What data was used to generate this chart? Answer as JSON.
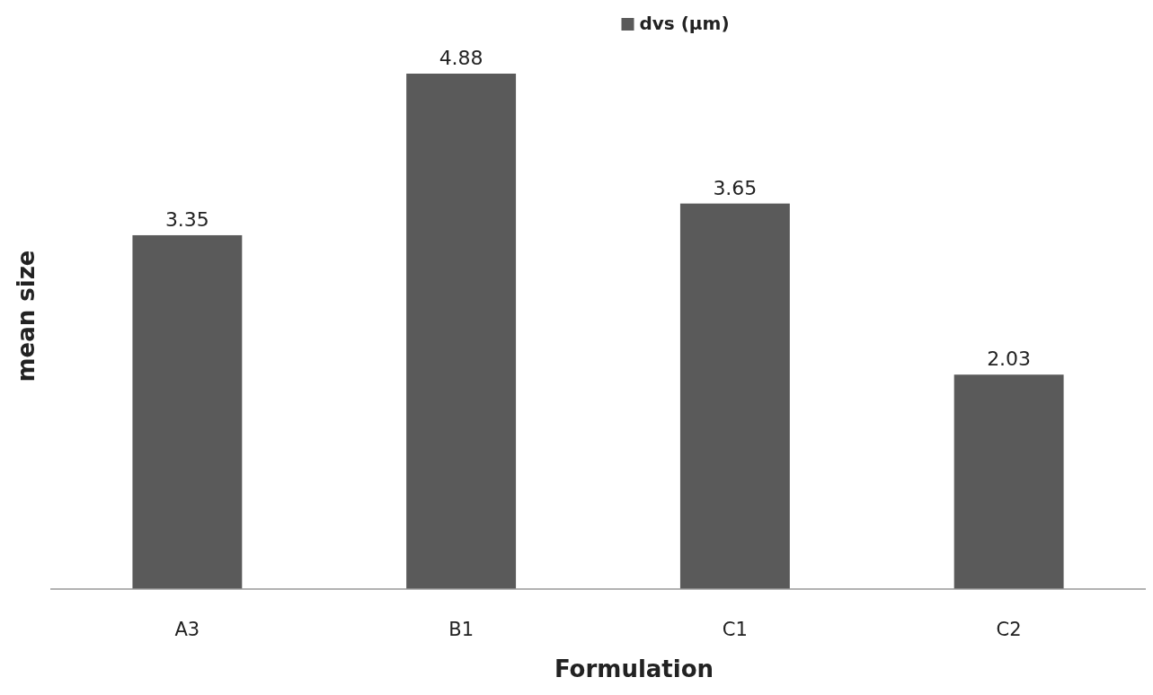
{
  "chart_data": {
    "type": "bar",
    "xlabel": "Formulation",
    "ylabel": "mean size",
    "categories": [
      "A3",
      "B1",
      "C1",
      "C2"
    ],
    "series": [
      {
        "name": "dvs (µm)",
        "color": "#5a5a5a",
        "values": [
          3.35,
          4.88,
          3.65,
          2.03
        ]
      }
    ],
    "data_labels": true,
    "legend": "top",
    "tick_labels": "x"
  }
}
